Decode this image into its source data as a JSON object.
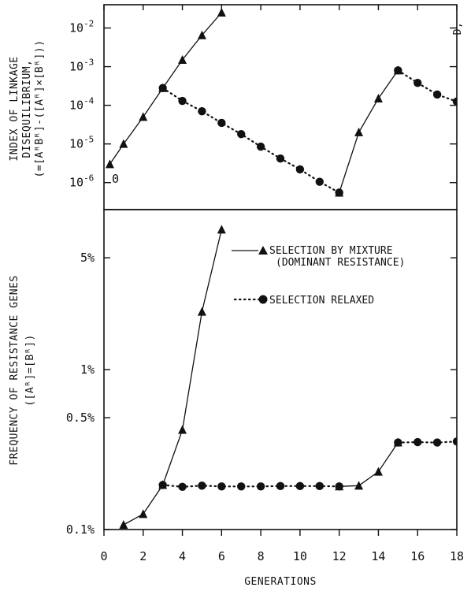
{
  "chart_data": [
    {
      "panel": "top",
      "type": "line",
      "yscale": "log",
      "ylabel_lines": [
        "INDEX OF LINKAGE",
        "DISEQUILIBRIUM,",
        "(=[AᴿBᴿ]-([Aᴿ]×[Bᴿ]))"
      ],
      "ylabel_symbol": "D,",
      "ytick_labels": [
        "10-6",
        "10-5",
        "10-4",
        "10-3",
        "10-2"
      ],
      "ytick_values": [
        1e-06,
        1e-05,
        0.0001,
        0.001,
        0.01
      ],
      "ylim": [
        2e-07,
        0.04
      ],
      "xlim": [
        0,
        18
      ],
      "origin_label": "0",
      "series": [
        {
          "marker": "triangle",
          "style": "solid",
          "x": [
            0.3,
            1,
            2,
            3,
            4,
            5,
            6
          ],
          "y": [
            3e-06,
            1e-05,
            5e-05,
            0.00028,
            0.0015,
            0.0065,
            0.025
          ]
        },
        {
          "marker": "circle",
          "style": "dotted",
          "x": [
            3,
            4,
            5,
            6,
            7,
            8,
            9,
            10,
            11,
            12
          ],
          "y": [
            0.00028,
            0.00013,
            7e-05,
            3.5e-05,
            1.8e-05,
            8.5e-06,
            4.2e-06,
            2.2e-06,
            1.05e-06,
            5.5e-07
          ]
        },
        {
          "marker": "triangle",
          "style": "solid",
          "x": [
            12,
            13,
            14,
            15
          ],
          "y": [
            5.5e-07,
            2e-05,
            0.00015,
            0.0008
          ]
        },
        {
          "marker": "circle",
          "style": "dotted",
          "x": [
            15,
            16,
            17,
            18
          ],
          "y": [
            0.0008,
            0.00038,
            0.00019,
            0.000125
          ]
        }
      ]
    },
    {
      "panel": "bottom",
      "type": "line",
      "yscale": "log",
      "ylabel_lines": [
        "FREQUENCY OF RESISTANCE GENES",
        "([Aᴿ]=[Bᴿ])"
      ],
      "ytick_labels": [
        "0.1%",
        "0.5%",
        "1%",
        "5%"
      ],
      "ytick_values": [
        0.1,
        0.5,
        1,
        5
      ],
      "ylim": [
        0.1,
        10
      ],
      "xlabel": "GENERATIONS",
      "xtick_labels": [
        "0",
        "2",
        "4",
        "6",
        "8",
        "10",
        "12",
        "14",
        "16",
        "18"
      ],
      "xtick_values": [
        0,
        2,
        4,
        6,
        8,
        10,
        12,
        14,
        16,
        18
      ],
      "xlim": [
        0,
        18
      ],
      "legend_position": "top-right",
      "series": [
        {
          "name": "SELECTION BY MIXTURE (DOMINANT RESISTANCE)",
          "marker": "triangle",
          "style": "solid",
          "x": [
            1,
            2,
            3,
            4,
            5,
            6
          ],
          "y": [
            0.107,
            0.125,
            0.19,
            0.42,
            2.3,
            7.5
          ]
        },
        {
          "name": "SELECTION RELAXED",
          "marker": "circle",
          "style": "dotted",
          "x": [
            3,
            4,
            5,
            6,
            7,
            8,
            9,
            10,
            11,
            12
          ],
          "y": [
            0.19,
            0.185,
            0.188,
            0.186,
            0.186,
            0.186,
            0.187,
            0.187,
            0.187,
            0.186
          ]
        },
        {
          "marker": "triangle",
          "style": "solid",
          "x": [
            12,
            13,
            14,
            15
          ],
          "y": [
            0.186,
            0.188,
            0.23,
            0.35
          ]
        },
        {
          "marker": "circle",
          "style": "dotted",
          "x": [
            15,
            16,
            17,
            18
          ],
          "y": [
            0.35,
            0.352,
            0.35,
            0.355
          ]
        }
      ]
    }
  ]
}
